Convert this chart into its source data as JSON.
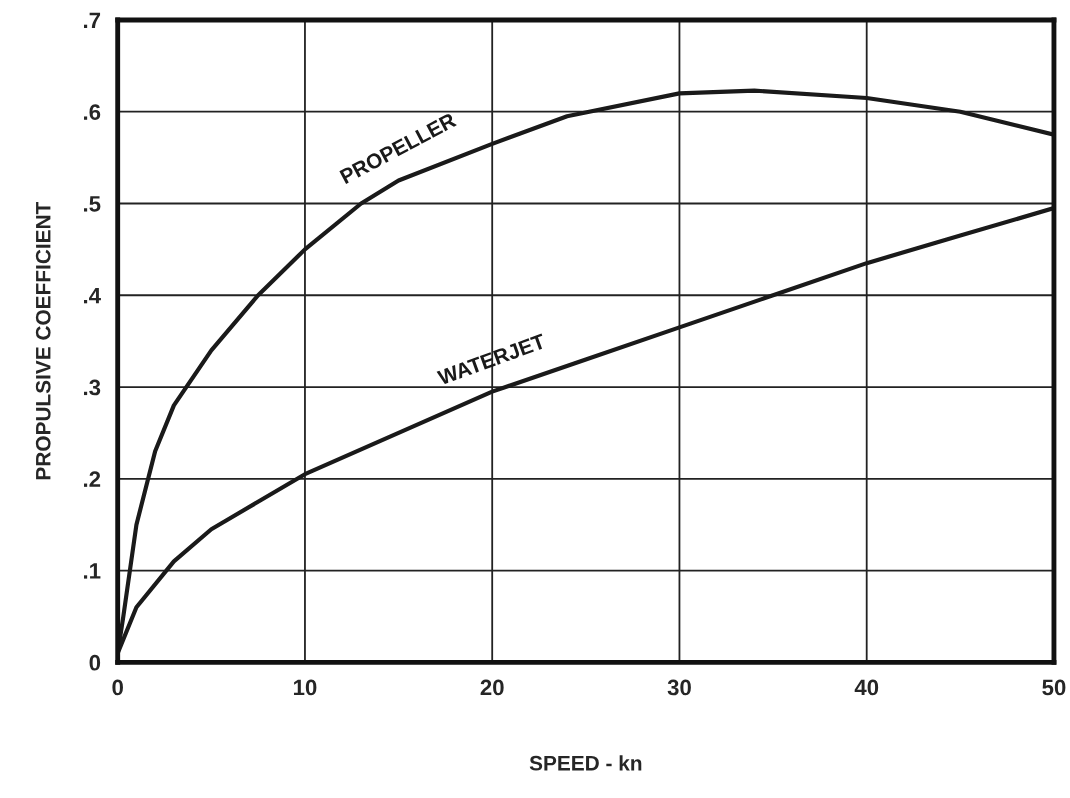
{
  "chart_data": {
    "type": "line",
    "xlabel": "SPEED - kn",
    "ylabel": "PROPULSIVE COEFFICIENT",
    "xlim": [
      0,
      50
    ],
    "ylim": [
      0,
      0.7
    ],
    "xticks": [
      0,
      10,
      20,
      30,
      40,
      50
    ],
    "yticks": [
      0,
      {
        "value": 0.1,
        "label": ".1"
      },
      {
        "value": 0.2,
        "label": ".2"
      },
      {
        "value": 0.3,
        "label": ".3"
      },
      {
        "value": 0.4,
        "label": ".4"
      },
      {
        "value": 0.5,
        "label": ".5"
      },
      {
        "value": 0.6,
        "label": ".6"
      },
      {
        "value": 0.7,
        "label": ".7"
      }
    ],
    "grid": true,
    "marker": "none",
    "line_style": "solid",
    "series": [
      {
        "name": "PROPELLER",
        "color": "#1a1a1a",
        "x": [
          0,
          0.3,
          1,
          2,
          3,
          5,
          7.5,
          10,
          13,
          15,
          20,
          24,
          30,
          34,
          40,
          45,
          50
        ],
        "values": [
          0.01,
          0.05,
          0.15,
          0.23,
          0.28,
          0.34,
          0.4,
          0.45,
          0.5,
          0.525,
          0.565,
          0.595,
          0.62,
          0.623,
          0.615,
          0.6,
          0.575
        ]
      },
      {
        "name": "WATERJET",
        "color": "#1a1a1a",
        "x": [
          0,
          1,
          3,
          5,
          10,
          15,
          20,
          25,
          30,
          35,
          40,
          45,
          50
        ],
        "values": [
          0.01,
          0.06,
          0.11,
          0.145,
          0.205,
          0.25,
          0.295,
          0.33,
          0.365,
          0.4,
          0.435,
          0.465,
          0.495
        ]
      }
    ]
  }
}
